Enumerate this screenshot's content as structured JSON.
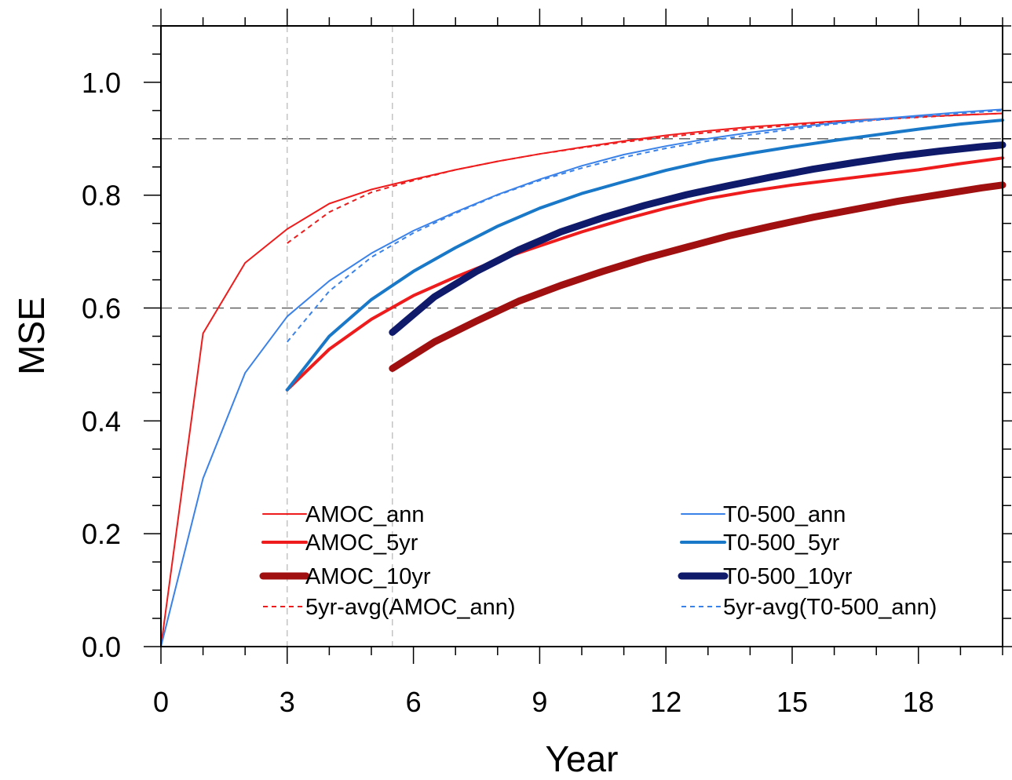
{
  "chart_data": {
    "type": "line",
    "title": "",
    "xlabel": "Year",
    "ylabel": "MSE",
    "xlim": [
      0,
      20
    ],
    "ylim": [
      0,
      1.1
    ],
    "x_ticks": [
      "0",
      "3",
      "6",
      "9",
      "12",
      "15",
      "18"
    ],
    "y_ticks": [
      "0.0",
      "0.2",
      "0.4",
      "0.6",
      "0.8",
      "1.0"
    ],
    "reference_lines": {
      "horizontal": [
        0.6,
        0.9
      ],
      "vertical": [
        3,
        5.5
      ]
    },
    "grid": false,
    "legend_position": "bottom",
    "series": [
      {
        "name": "AMOC_ann",
        "color": "#ee1c1c",
        "width": 2,
        "dash": "solid",
        "x": [
          0,
          1,
          2,
          3,
          4,
          5,
          6,
          7,
          8,
          9,
          10,
          11,
          12,
          13,
          14,
          15,
          16,
          17,
          18,
          19,
          20
        ],
        "y": [
          0.0,
          0.555,
          0.68,
          0.74,
          0.785,
          0.81,
          0.828,
          0.845,
          0.86,
          0.873,
          0.885,
          0.896,
          0.906,
          0.914,
          0.921,
          0.926,
          0.931,
          0.935,
          0.939,
          0.942,
          0.945
        ]
      },
      {
        "name": "AMOC_5yr",
        "color": "#ee1c1c",
        "width": 4,
        "dash": "solid",
        "x": [
          3,
          4,
          5,
          6,
          7,
          8,
          9,
          10,
          11,
          12,
          13,
          14,
          15,
          16,
          17,
          18,
          19,
          20
        ],
        "y": [
          0.455,
          0.527,
          0.58,
          0.622,
          0.655,
          0.685,
          0.71,
          0.735,
          0.757,
          0.777,
          0.794,
          0.807,
          0.818,
          0.827,
          0.836,
          0.845,
          0.856,
          0.866
        ]
      },
      {
        "name": "AMOC_10yr",
        "color": "#a11010",
        "width": 9,
        "dash": "solid",
        "x": [
          5.5,
          6.5,
          7.5,
          8.5,
          9.5,
          10.5,
          11.5,
          12.5,
          13.5,
          14.5,
          15.5,
          16.5,
          17.5,
          18.5,
          19.5,
          20
        ],
        "y": [
          0.493,
          0.54,
          0.577,
          0.612,
          0.64,
          0.665,
          0.688,
          0.708,
          0.728,
          0.745,
          0.761,
          0.775,
          0.789,
          0.801,
          0.813,
          0.818
        ]
      },
      {
        "name": "5yr-avg(AMOC_ann)",
        "color": "#ee1c1c",
        "width": 2,
        "dash": "dashed",
        "x": [
          3,
          4,
          5,
          6,
          7,
          8,
          9,
          10,
          11,
          12,
          13,
          14,
          15,
          16,
          17,
          18,
          19,
          20
        ],
        "y": [
          0.715,
          0.77,
          0.805,
          0.826,
          0.845,
          0.86,
          0.873,
          0.884,
          0.894,
          0.903,
          0.911,
          0.918,
          0.924,
          0.929,
          0.934,
          0.938,
          0.942,
          0.945
        ]
      },
      {
        "name": "T0-500_ann",
        "color": "#3b82e8",
        "width": 2,
        "dash": "solid",
        "x": [
          0,
          1,
          2,
          3,
          4,
          5,
          6,
          7,
          8,
          9,
          10,
          11,
          12,
          13,
          14,
          15,
          16,
          17,
          18,
          19,
          20
        ],
        "y": [
          0.0,
          0.298,
          0.485,
          0.585,
          0.648,
          0.697,
          0.737,
          0.77,
          0.801,
          0.828,
          0.852,
          0.872,
          0.887,
          0.9,
          0.911,
          0.92,
          0.928,
          0.935,
          0.941,
          0.947,
          0.952
        ]
      },
      {
        "name": "T0-500_5yr",
        "color": "#1a78c8",
        "width": 4,
        "dash": "solid",
        "x": [
          3,
          4,
          5,
          6,
          7,
          8,
          9,
          10,
          11,
          12,
          13,
          14,
          15,
          16,
          17,
          18,
          19,
          20
        ],
        "y": [
          0.455,
          0.55,
          0.615,
          0.665,
          0.707,
          0.745,
          0.777,
          0.803,
          0.824,
          0.844,
          0.861,
          0.874,
          0.886,
          0.897,
          0.907,
          0.917,
          0.926,
          0.933
        ]
      },
      {
        "name": "T0-500_10yr",
        "color": "#0f1a6b",
        "width": 9,
        "dash": "solid",
        "x": [
          5.5,
          6.5,
          7.5,
          8.5,
          9.5,
          10.5,
          11.5,
          12.5,
          13.5,
          14.5,
          15.5,
          16.5,
          17.5,
          18.5,
          19.5,
          20
        ],
        "y": [
          0.557,
          0.62,
          0.665,
          0.703,
          0.735,
          0.76,
          0.782,
          0.801,
          0.817,
          0.832,
          0.846,
          0.858,
          0.869,
          0.878,
          0.886,
          0.889
        ]
      },
      {
        "name": "5yr-avg(T0-500_ann)",
        "color": "#3b82e8",
        "width": 2,
        "dash": "dashed",
        "x": [
          3,
          4,
          5,
          6,
          7,
          8,
          9,
          10,
          11,
          12,
          13,
          14,
          15,
          16,
          17,
          18,
          19,
          20
        ],
        "y": [
          0.54,
          0.63,
          0.69,
          0.733,
          0.768,
          0.8,
          0.826,
          0.848,
          0.867,
          0.883,
          0.896,
          0.907,
          0.917,
          0.926,
          0.933,
          0.939,
          0.945,
          0.95
        ]
      }
    ]
  }
}
